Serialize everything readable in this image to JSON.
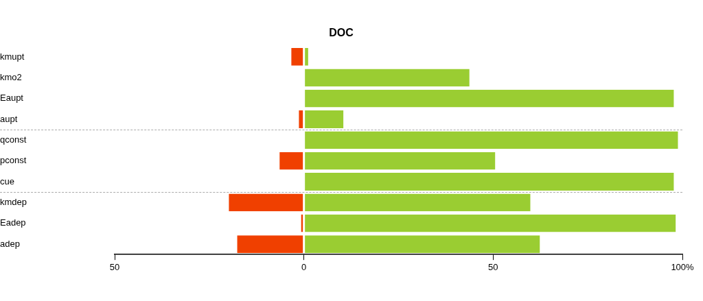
{
  "chart_data": {
    "type": "bar",
    "title": "DOC",
    "orientation": "horizontal",
    "stacked": true,
    "categories": [
      "kmupt",
      "kmo2",
      "Eaupt",
      "aupt",
      "qconst",
      "pconst",
      "cue",
      "kmdep",
      "Eadep",
      "adep"
    ],
    "series": [
      {
        "color": "#f04000",
        "values": [
          -3.5,
          null,
          null,
          -1.5,
          null,
          -6.6,
          null,
          -20,
          -0.9,
          -17.8
        ]
      },
      {
        "color": "#9acd32",
        "values": [
          1.3,
          43.9,
          97.9,
          10.6,
          99,
          50.7,
          97.9,
          60,
          98.4,
          62.5
        ]
      }
    ],
    "xlim": [
      -50,
      100
    ],
    "xticks": [
      {
        "value": -50,
        "label": "50"
      },
      0,
      50,
      {
        "value": 100,
        "label": "100%"
      }
    ],
    "grid": false,
    "legend": false
  }
}
